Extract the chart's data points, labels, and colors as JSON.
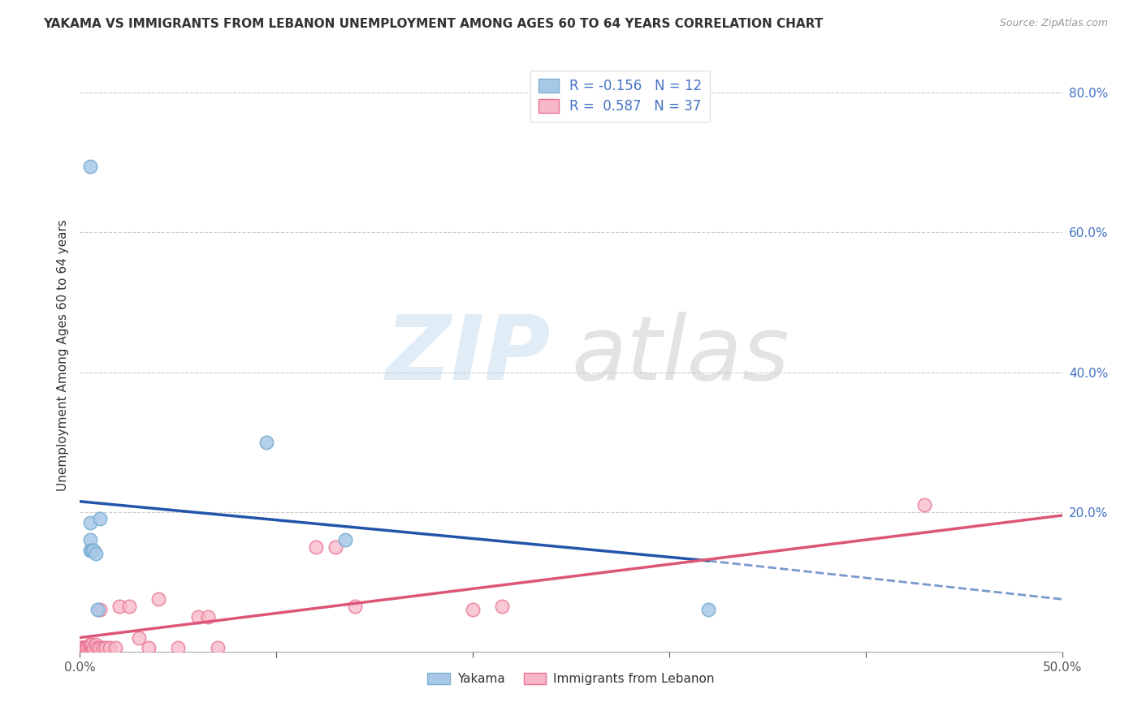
{
  "title": "YAKAMA VS IMMIGRANTS FROM LEBANON UNEMPLOYMENT AMONG AGES 60 TO 64 YEARS CORRELATION CHART",
  "source": "Source: ZipAtlas.com",
  "ylabel": "Unemployment Among Ages 60 to 64 years",
  "xlim": [
    0.0,
    0.5
  ],
  "ylim": [
    0.0,
    0.85
  ],
  "xtick_positions": [
    0.0,
    0.1,
    0.2,
    0.3,
    0.4,
    0.5
  ],
  "xtick_labels_bottom": [
    "0.0%",
    "",
    "",
    "",
    "",
    "50.0%"
  ],
  "yticks_right": [
    0.2,
    0.4,
    0.6,
    0.8
  ],
  "ytick_labels_right": [
    "20.0%",
    "40.0%",
    "60.0%",
    "80.0%"
  ],
  "grid_color": "#cccccc",
  "background_color": "#ffffff",
  "yakama_color": "#a8c8e8",
  "yakama_edge": "#7aafd4",
  "lebanon_color": "#f8b8c8",
  "lebanon_edge": "#e87090",
  "trend_blue": "#2255aa",
  "trend_pink": "#dd5577",
  "legend_r1": "R = -0.156",
  "legend_n1": "N = 12",
  "legend_r2": "R =  0.587",
  "legend_n2": "N = 37",
  "legend_label1": "Yakama",
  "legend_label2": "Immigrants from Lebanon",
  "watermark_zip": "ZIP",
  "watermark_atlas": "atlas",
  "yakama_points_x": [
    0.005,
    0.005,
    0.005,
    0.005,
    0.006,
    0.007,
    0.008,
    0.009,
    0.01,
    0.095,
    0.135,
    0.32
  ],
  "yakama_points_y": [
    0.695,
    0.185,
    0.16,
    0.145,
    0.145,
    0.145,
    0.14,
    0.06,
    0.19,
    0.3,
    0.16,
    0.06
  ],
  "lebanon_points_x": [
    0.001,
    0.001,
    0.001,
    0.002,
    0.002,
    0.003,
    0.003,
    0.004,
    0.005,
    0.005,
    0.005,
    0.006,
    0.006,
    0.007,
    0.008,
    0.009,
    0.01,
    0.01,
    0.012,
    0.013,
    0.015,
    0.018,
    0.02,
    0.025,
    0.03,
    0.035,
    0.04,
    0.05,
    0.06,
    0.065,
    0.07,
    0.12,
    0.13,
    0.14,
    0.2,
    0.215,
    0.43
  ],
  "lebanon_points_y": [
    0.005,
    0.005,
    0.005,
    0.005,
    0.005,
    0.005,
    0.005,
    0.005,
    0.005,
    0.005,
    0.01,
    0.005,
    0.01,
    0.005,
    0.01,
    0.005,
    0.005,
    0.06,
    0.005,
    0.005,
    0.005,
    0.005,
    0.065,
    0.065,
    0.02,
    0.005,
    0.075,
    0.005,
    0.05,
    0.05,
    0.005,
    0.15,
    0.15,
    0.065,
    0.06,
    0.065,
    0.21
  ],
  "trend_yak_x0": 0.0,
  "trend_yak_y0": 0.215,
  "trend_yak_x1": 0.32,
  "trend_yak_y1": 0.13,
  "trend_yak_dash_x0": 0.32,
  "trend_yak_dash_y0": 0.13,
  "trend_yak_dash_x1": 0.5,
  "trend_yak_dash_y1": 0.075,
  "trend_leb_x0": 0.0,
  "trend_leb_y0": 0.02,
  "trend_leb_x1": 0.5,
  "trend_leb_y1": 0.195
}
